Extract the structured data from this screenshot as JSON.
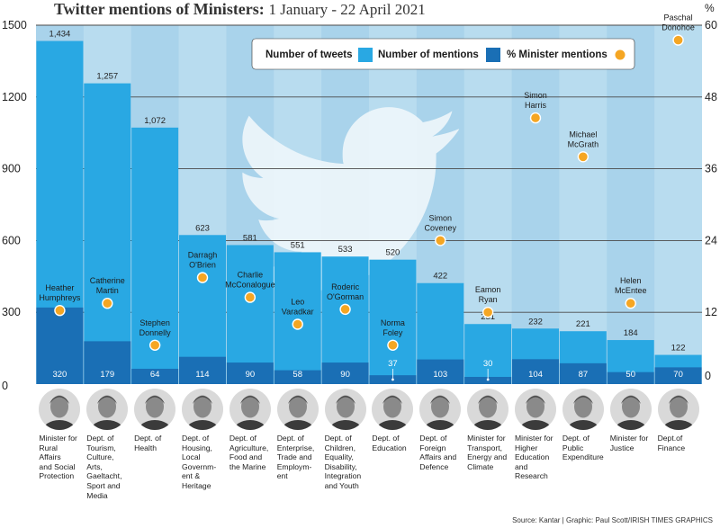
{
  "title": {
    "bold": "Twitter mentions of Ministers:",
    "rest": "1 January - 22 April 2021"
  },
  "chart_data": {
    "type": "bar",
    "title": "Twitter mentions of Ministers: 1 January - 22 April 2021",
    "y_left_ticks": [
      "1500",
      "1200",
      "900",
      "600",
      "300",
      "0"
    ],
    "y_right_ticks": [
      "60",
      "48",
      "36",
      "24",
      "12",
      "0"
    ],
    "y_right_unit": "%",
    "ylim_left": [
      0,
      1500
    ],
    "ylim_right": [
      0,
      60
    ],
    "legend": [
      "Number of tweets",
      "Number of mentions",
      "% Minister mentions"
    ],
    "categories": [
      "Minister for Rural Affairs and Social Protection",
      "Dept. of Tourism, Culture, Arts, Gaeltacht, Sport and Media",
      "Dept. of Health",
      "Dept. of Housing, Local Government & Heritage",
      "Dept. of Agriculture, Food and the Marine",
      "Dept. of Enterprise, Trade and Employment",
      "Dept. of Children, Equality, Disability, Integration and Youth",
      "Dept. of Education",
      "Dept. of Foreign Affairs and Defence",
      "Minister for Transport, Energy and Climate",
      "Minister for Higher Education and Research",
      "Dept. of Public Expenditure",
      "Minister for Justice",
      "Dept. of Finance"
    ],
    "dept_lines": [
      [
        "Minister for",
        "Rural",
        "Affairs",
        "and Social",
        "Protection"
      ],
      [
        "Dept. of",
        "Tourism,",
        "Culture,",
        "Arts,",
        "Gaeltacht,",
        "Sport and",
        "Media"
      ],
      [
        "Dept. of",
        "Health"
      ],
      [
        "Dept. of",
        "Housing,",
        "Local",
        "Governm-",
        "ent &",
        "Heritage"
      ],
      [
        "Dept. of",
        "Agriculture,",
        "Food and",
        "the Marine"
      ],
      [
        "Dept. of",
        "Enterprise,",
        "Trade and",
        "Employm-",
        "ent"
      ],
      [
        "Dept. of",
        "Children,",
        "Equality,",
        "Disability,",
        "Integration",
        "and Youth"
      ],
      [
        "Dept. of",
        "Education"
      ],
      [
        "Dept. of",
        "Foreign",
        "Affairs and",
        "Defence"
      ],
      [
        "Minister for",
        "Transport,",
        "Energy and",
        "Climate"
      ],
      [
        "Minister for",
        "Higher",
        "Education",
        "and",
        "Research"
      ],
      [
        "Dept. of",
        "Public",
        "Expenditure"
      ],
      [
        "Minister for",
        "Justice"
      ],
      [
        "Dept.of",
        "Finance"
      ]
    ],
    "ministers": [
      [
        "Heather",
        "Humphreys"
      ],
      [
        "Catherine",
        "Martin"
      ],
      [
        "Stephen",
        "Donnelly"
      ],
      [
        "Darragh",
        "O'Brien"
      ],
      [
        "Charlie",
        "McConalogue"
      ],
      [
        "Leo",
        "Varadkar"
      ],
      [
        "Roderic",
        "O'Gorman"
      ],
      [
        "Norma",
        "Foley"
      ],
      [
        "Simon",
        "Coveney"
      ],
      [
        "Eamon",
        "Ryan"
      ],
      [
        "Simon",
        "Harris"
      ],
      [
        "Michael",
        "McGrath"
      ],
      [
        "Helen",
        "McEntee"
      ],
      [
        "Paschal",
        "Donohoe"
      ]
    ],
    "series": [
      {
        "name": "Number of tweets",
        "values": [
          1434,
          1257,
          1072,
          623,
          581,
          551,
          533,
          520,
          422,
          251,
          232,
          221,
          184,
          122
        ]
      },
      {
        "name": "Number of mentions",
        "values": [
          320,
          179,
          64,
          114,
          90,
          58,
          90,
          37,
          103,
          30,
          104,
          87,
          50,
          70
        ]
      },
      {
        "name": "% Minister mentions",
        "values": [
          12.3,
          13.5,
          6.5,
          17.8,
          14.5,
          10.0,
          12.5,
          6.5,
          24.0,
          12.0,
          44.5,
          38.0,
          13.5,
          57.5
        ]
      }
    ]
  },
  "source": "Source: Kantar  |  Graphic: Paul Scott/IRISH TIMES GRAPHICS",
  "colors": {
    "background_band": "#b8dcef",
    "background_alt": "#a9d3eb",
    "tweets_bar": "#29a8e3",
    "mentions_bar": "#1a6fb5",
    "minister_dot": "#f5a623",
    "gridline": "#4a4a4a",
    "twitter_logo": "#eef6fb"
  }
}
